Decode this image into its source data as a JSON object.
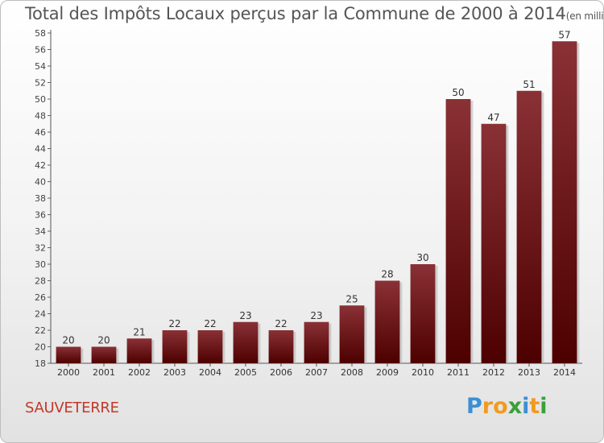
{
  "title": "Total des Impôts Locaux perçus par la Commune de 2000 à 2014",
  "title_unit": "(en milliers d'€)",
  "commune": "SAUVETERRE",
  "logo": {
    "letters": [
      "P",
      "r",
      "o",
      "x",
      "i",
      "t",
      "i"
    ],
    "colors": [
      "#3c8fd4",
      "#f29a1e",
      "#f29a1e",
      "#3aa03a",
      "#3c8fd4",
      "#f29a1e",
      "#3aa03a"
    ]
  },
  "colors": {
    "bar_top": "#8a3136",
    "bar_bottom": "#4d0000",
    "commune": "#c0392b"
  },
  "chart_data": {
    "type": "bar",
    "title": "Total des Impôts Locaux perçus par la Commune de 2000 à 2014",
    "categories": [
      "2000",
      "2001",
      "2002",
      "2003",
      "2004",
      "2005",
      "2006",
      "2007",
      "2008",
      "2009",
      "2010",
      "2011",
      "2012",
      "2013",
      "2014"
    ],
    "values": [
      20,
      20,
      21,
      22,
      22,
      23,
      22,
      23,
      25,
      28,
      30,
      50,
      47,
      51,
      57
    ],
    "ylim": [
      18,
      58
    ],
    "ytick_step": 2,
    "grid": false,
    "legend": "none"
  }
}
